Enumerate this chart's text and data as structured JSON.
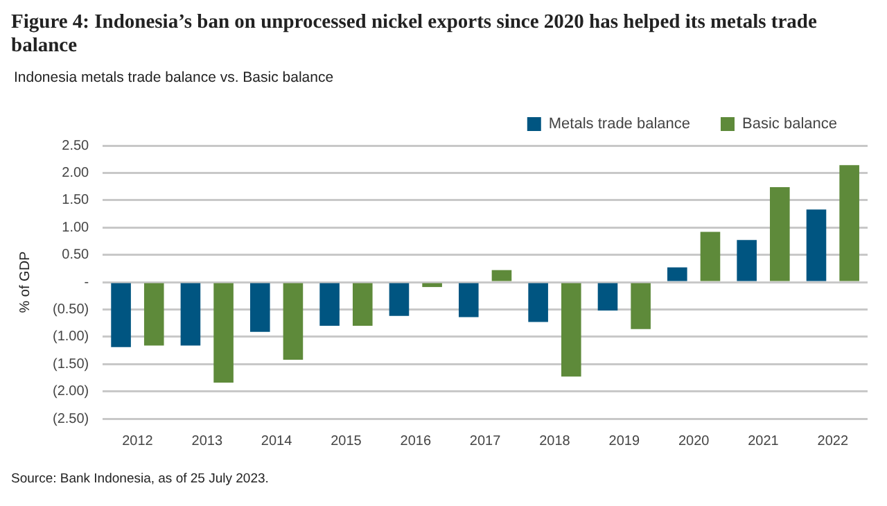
{
  "chart_data": {
    "type": "bar",
    "title": "Figure 4: Indonesia’s ban on unprocessed nickel exports since 2020 has helped its metals trade balance",
    "subtitle": "Indonesia metals trade balance vs. Basic balance",
    "ylabel": "% of GDP",
    "categories": [
      "2012",
      "2013",
      "2014",
      "2015",
      "2016",
      "2017",
      "2018",
      "2019",
      "2020",
      "2021",
      "2022"
    ],
    "series": [
      {
        "name": "Metals trade balance",
        "color": "#005581",
        "values": [
          -1.19,
          -1.16,
          -0.91,
          -0.8,
          -0.62,
          -0.64,
          -0.73,
          -0.52,
          0.27,
          0.77,
          1.33
        ]
      },
      {
        "name": "Basic balance",
        "color": "#5e8a3a",
        "values": [
          -1.16,
          -1.84,
          -1.42,
          -0.8,
          -0.09,
          0.22,
          -1.73,
          -0.86,
          0.92,
          1.74,
          2.14
        ]
      }
    ],
    "ylim": [
      -2.5,
      2.5
    ],
    "yticks": [
      {
        "value": 2.5,
        "label": "2.50"
      },
      {
        "value": 2,
        "label": "2.00"
      },
      {
        "value": 1.5,
        "label": "1.50"
      },
      {
        "value": 1,
        "label": "1.00"
      },
      {
        "value": 0.5,
        "label": "0.50"
      },
      {
        "value": 0,
        "label": "-"
      },
      {
        "value": -0.5,
        "label": "(0.50)"
      },
      {
        "value": -1,
        "label": "(1.00)"
      },
      {
        "value": -1.5,
        "label": "(1.50)"
      },
      {
        "value": -2,
        "label": "(2.00)"
      },
      {
        "value": -2.5,
        "label": "(2.50)"
      }
    ],
    "grid": "y",
    "legend": "top right",
    "annotations": [
      "Source: Bank Indonesia, as of 25 July 2023."
    ]
  }
}
